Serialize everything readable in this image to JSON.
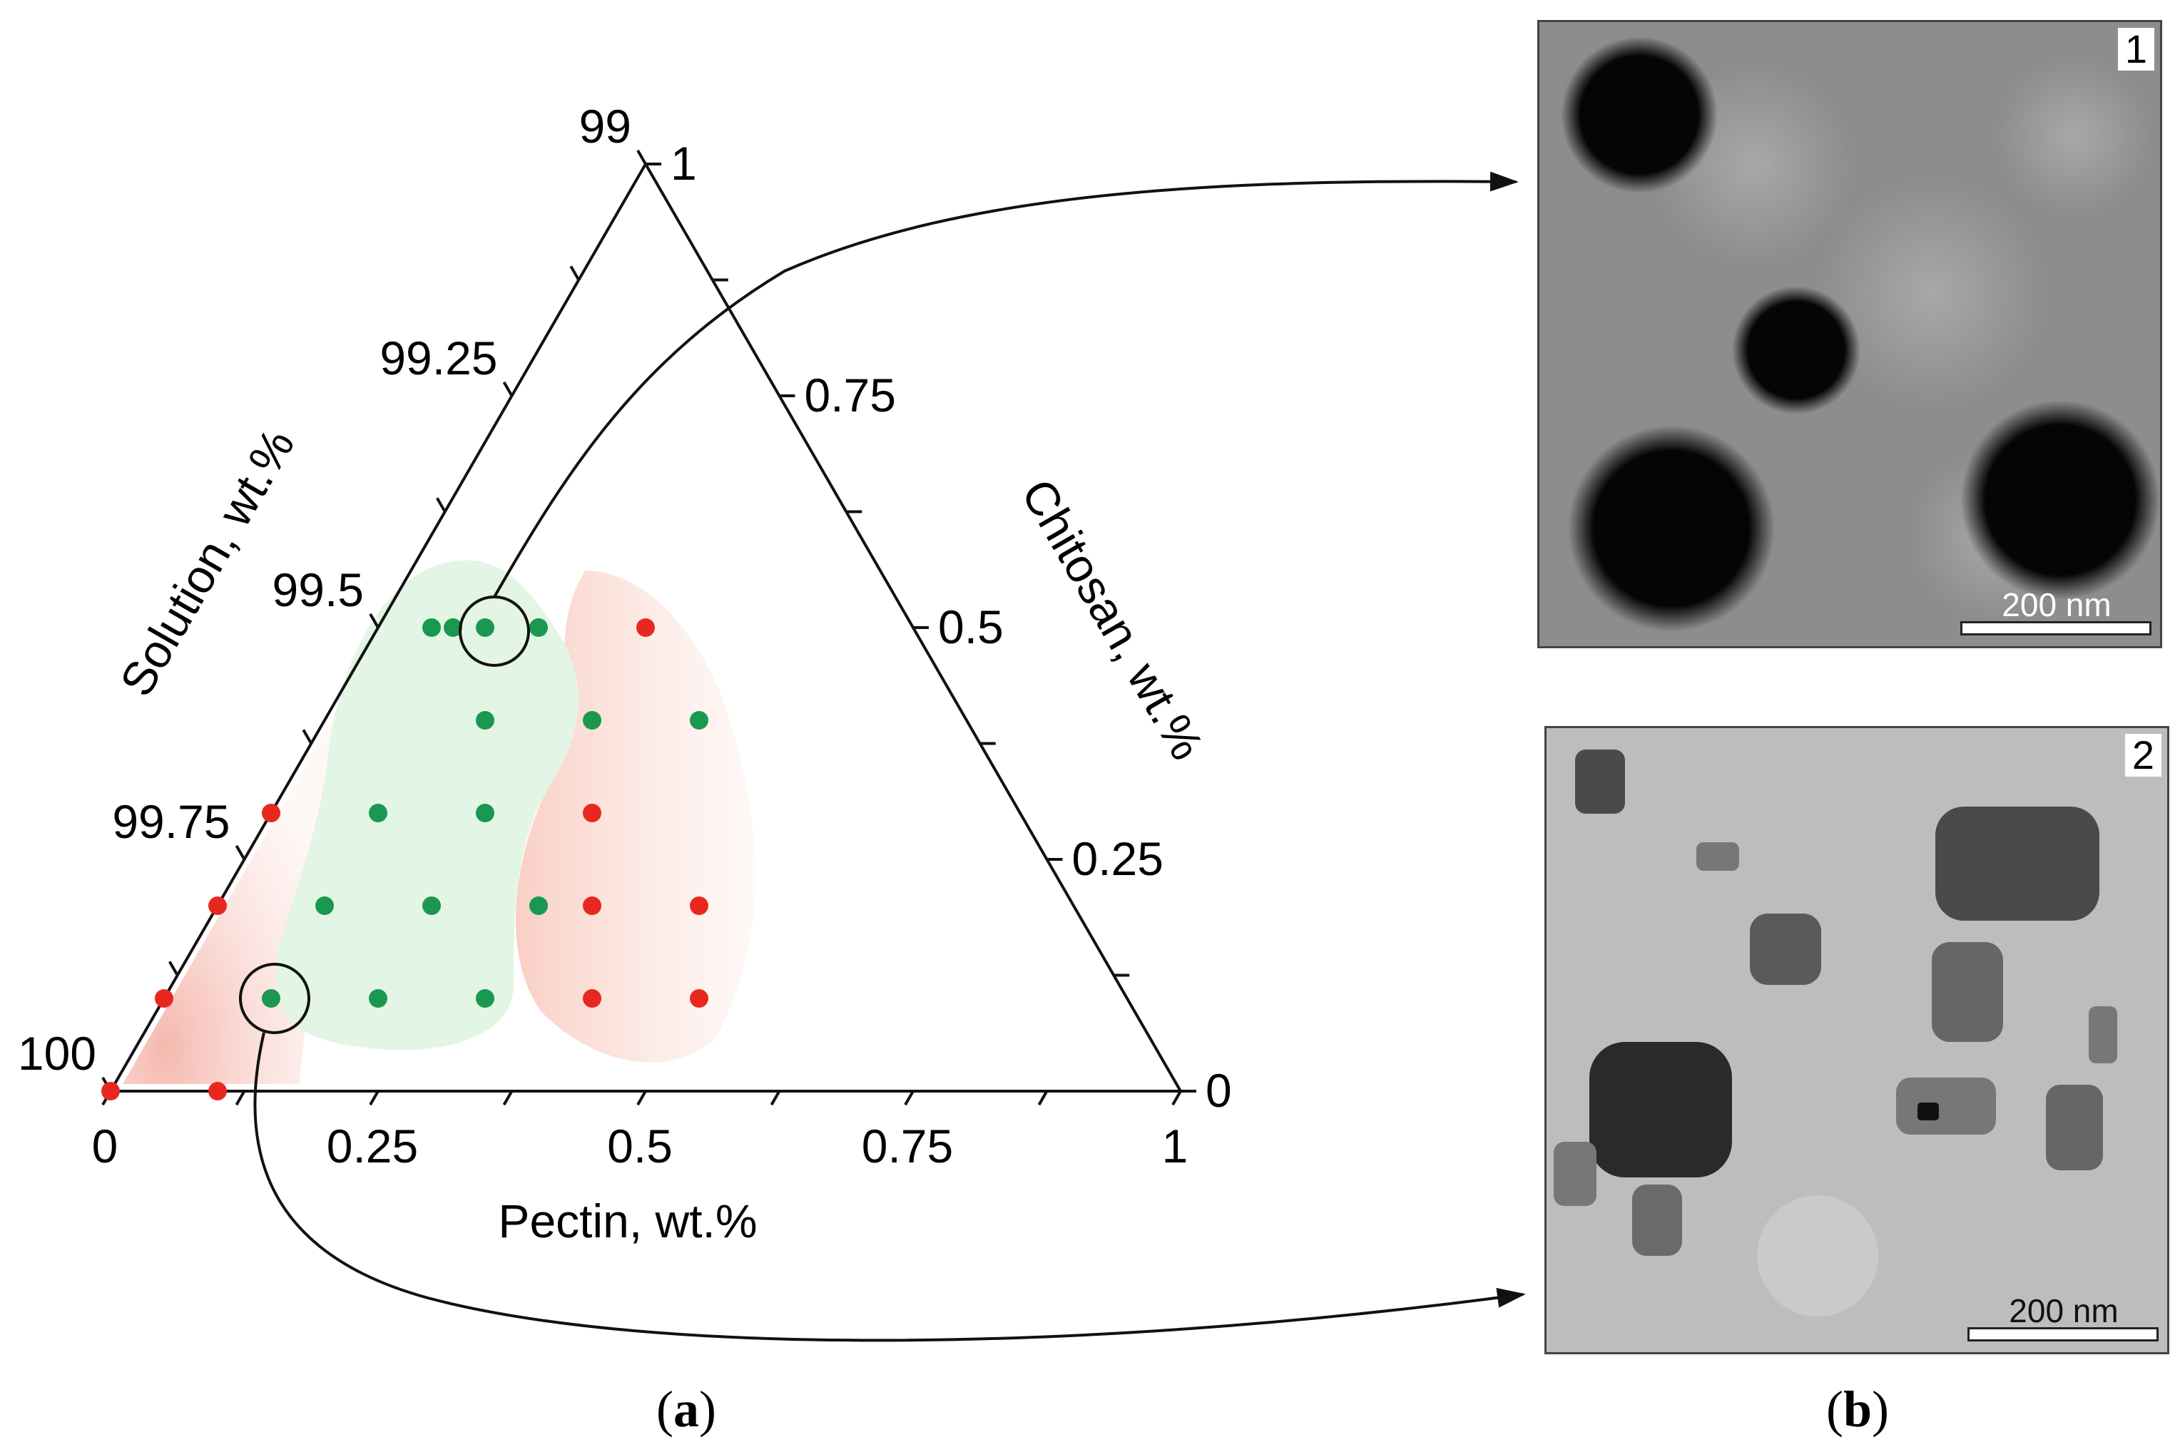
{
  "panel_a": {
    "caption_open": "(",
    "caption_letter": "a",
    "caption_close": ")",
    "bottom_axis": {
      "label": "Pectin, wt.%",
      "ticks": [
        "0",
        "0.25",
        "0.5",
        "0.75",
        "1"
      ]
    },
    "right_axis": {
      "label": "Chitosan, wt.%",
      "ticks": [
        "0",
        "0.25",
        "0.5",
        "0.75",
        "1"
      ]
    },
    "left_axis": {
      "label": "Solution, wt.%",
      "ticks": [
        "100",
        "99.75",
        "99.5",
        "99.25",
        "99"
      ]
    }
  },
  "panel_b": {
    "caption_open": "(",
    "caption_letter": "b",
    "caption_close": ")",
    "images": [
      {
        "number": "1",
        "scale": "200 nm"
      },
      {
        "number": "2",
        "scale": "200 nm"
      }
    ]
  },
  "colors": {
    "success": "#1a9850",
    "failure": "#e8281e",
    "success_region": "#e3f5e4",
    "failure_region": "#fbd9d0"
  },
  "chart_data": {
    "type": "scatter",
    "coordinate_system": "ternary",
    "xlabel": "Pectin, wt.%",
    "ylabel": "Chitosan, wt.%",
    "third_label": "Solution, wt.%",
    "xlim": [
      0,
      1
    ],
    "ylim": [
      0,
      1
    ],
    "series": [
      {
        "color": "#1a9850",
        "points": [
          {
            "pectin": 0.05,
            "chitosan": 0.5
          },
          {
            "pectin": 0.07,
            "chitosan": 0.5
          },
          {
            "pectin": 0.1,
            "chitosan": 0.5
          },
          {
            "pectin": 0.15,
            "chitosan": 0.5
          },
          {
            "pectin": 0.15,
            "chitosan": 0.4
          },
          {
            "pectin": 0.25,
            "chitosan": 0.4
          },
          {
            "pectin": 0.35,
            "chitosan": 0.4
          },
          {
            "pectin": 0.1,
            "chitosan": 0.3
          },
          {
            "pectin": 0.2,
            "chitosan": 0.3
          },
          {
            "pectin": 0.1,
            "chitosan": 0.2
          },
          {
            "pectin": 0.2,
            "chitosan": 0.2
          },
          {
            "pectin": 0.3,
            "chitosan": 0.2
          },
          {
            "pectin": 0.1,
            "chitosan": 0.1
          },
          {
            "pectin": 0.2,
            "chitosan": 0.1
          },
          {
            "pectin": 0.3,
            "chitosan": 0.1
          }
        ]
      },
      {
        "color": "#e8281e",
        "points": [
          {
            "pectin": 0.25,
            "chitosan": 0.5
          },
          {
            "pectin": 0.3,
            "chitosan": 0.3
          },
          {
            "pectin": 0.0,
            "chitosan": 0.3
          },
          {
            "pectin": 0.0,
            "chitosan": 0.2
          },
          {
            "pectin": 0.35,
            "chitosan": 0.2
          },
          {
            "pectin": 0.45,
            "chitosan": 0.2
          },
          {
            "pectin": 0.0,
            "chitosan": 0.1
          },
          {
            "pectin": 0.4,
            "chitosan": 0.1
          },
          {
            "pectin": 0.5,
            "chitosan": 0.1
          },
          {
            "pectin": 0.0,
            "chitosan": 0.0
          },
          {
            "pectin": 0.1,
            "chitosan": 0.0
          }
        ]
      }
    ],
    "highlighted": [
      {
        "pectin": 0.15,
        "chitosan": 0.5,
        "links_to_image": "1"
      },
      {
        "pectin": 0.1,
        "chitosan": 0.1,
        "links_to_image": "2"
      }
    ]
  }
}
